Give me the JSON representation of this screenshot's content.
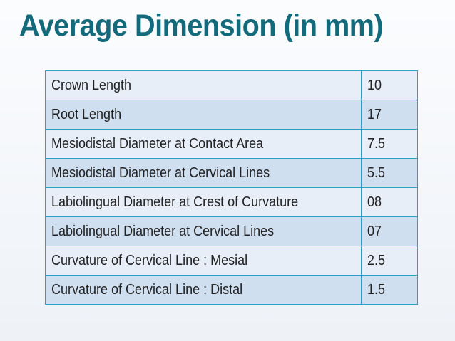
{
  "slide": {
    "title": "Average Dimension (in mm)"
  },
  "table": {
    "rows": [
      {
        "label": "Crown Length",
        "value": "10"
      },
      {
        "label": "Root Length",
        "value": "17"
      },
      {
        "label": "Mesiodistal Diameter at Contact Area",
        "value": "7.5"
      },
      {
        "label": "Mesiodistal Diameter at Cervical Lines",
        "value": "5.5"
      },
      {
        "label": "Labiolingual Diameter at Crest of Curvature",
        "value": "08"
      },
      {
        "label": "Labiolingual Diameter at Cervical Lines",
        "value": "07"
      },
      {
        "label": "Curvature of Cervical Line : Mesial",
        "value": "2.5"
      },
      {
        "label": "Curvature of Cervical Line : Distal",
        "value": "1.5"
      }
    ]
  },
  "colors": {
    "title": "#136a7b",
    "table_border": "#2aa0c4",
    "row_light": "#e7eef8",
    "row_dark": "#d0dff0"
  }
}
